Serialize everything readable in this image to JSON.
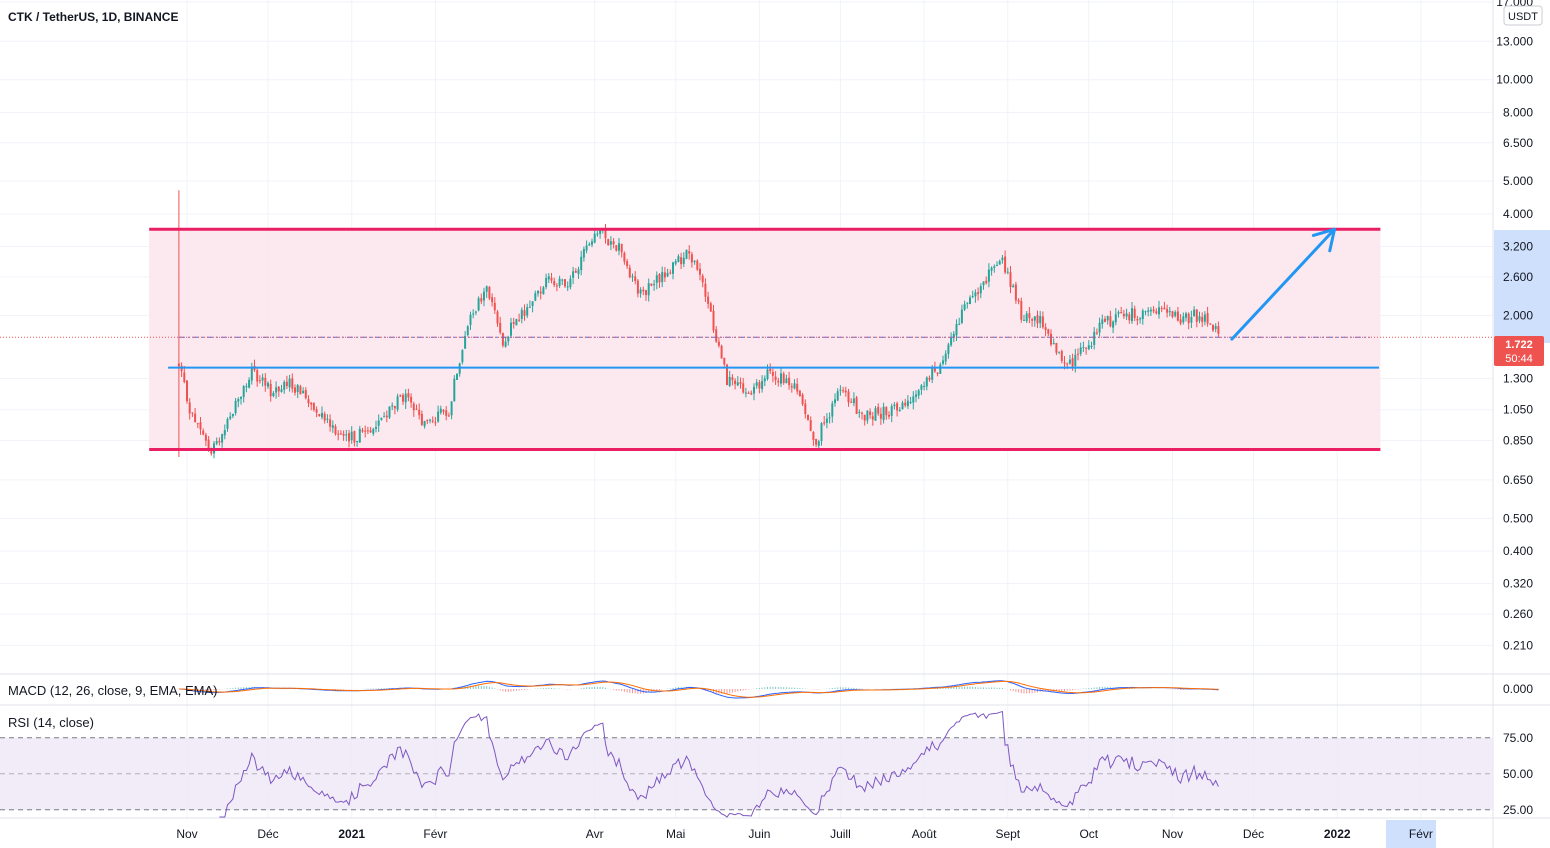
{
  "header": {
    "title": "CTK / TetherUS, 1D, BINANCE"
  },
  "price_axis": {
    "currency_badge": "USDT",
    "ticks": [
      "17.000",
      "13.000",
      "10.000",
      "8.000",
      "6.500",
      "5.000",
      "4.000",
      "3.200",
      "2.600",
      "2.000",
      "1.300",
      "1.050",
      "0.850",
      "0.650",
      "0.500",
      "0.400",
      "0.320",
      "0.260",
      "0.210"
    ],
    "last_price": "1.722",
    "countdown": "50:44"
  },
  "time_axis": {
    "labels": [
      "Nov",
      "Déc",
      "2021",
      "Févr",
      "Avr",
      "Mai",
      "Juin",
      "Juill",
      "Août",
      "Sept",
      "Oct",
      "Nov",
      "Déc",
      "2022",
      "Févr"
    ]
  },
  "macd": {
    "title": "MACD (12, 26, close, 9, EMA, EMA)",
    "axis_tick": "0.000"
  },
  "rsi": {
    "title": "RSI (14, close)",
    "axis_ticks": [
      "75.00",
      "50.00",
      "25.00"
    ]
  },
  "colors": {
    "up": "#26a69a",
    "down": "#ef5350",
    "range_line": "#e91e63",
    "range_fill": "#fce4ec",
    "support": "#2196f3",
    "arrow": "#2196f3",
    "rsi_line": "#7e57c2",
    "rsi_band": "#ede7f6",
    "macd_line": "#2962ff",
    "signal_line": "#ff6d00"
  },
  "chart_data": {
    "type": "candlestick",
    "title": "CTK / TetherUS, 1D, BINANCE",
    "y_scale": "log",
    "ylim": [
      0.19,
      17.0
    ],
    "x_range": [
      "2020-10-28",
      "2022-02-28"
    ],
    "anchors": [
      {
        "date": "2020-10-29",
        "close": 1.4
      },
      {
        "date": "2020-11-03",
        "close": 1.0
      },
      {
        "date": "2020-11-10",
        "close": 0.78
      },
      {
        "date": "2020-11-18",
        "close": 1.05
      },
      {
        "date": "2020-11-25",
        "close": 1.35
      },
      {
        "date": "2020-12-02",
        "close": 1.2
      },
      {
        "date": "2020-12-10",
        "close": 1.25
      },
      {
        "date": "2020-12-20",
        "close": 1.05
      },
      {
        "date": "2020-12-30",
        "close": 0.85
      },
      {
        "date": "2021-01-10",
        "close": 0.95
      },
      {
        "date": "2021-01-20",
        "close": 1.15
      },
      {
        "date": "2021-01-28",
        "close": 0.95
      },
      {
        "date": "2021-02-06",
        "close": 1.05
      },
      {
        "date": "2021-02-12",
        "close": 1.8
      },
      {
        "date": "2021-02-20",
        "close": 2.4
      },
      {
        "date": "2021-02-26",
        "close": 1.7
      },
      {
        "date": "2021-03-06",
        "close": 2.05
      },
      {
        "date": "2021-03-15",
        "close": 2.6
      },
      {
        "date": "2021-03-22",
        "close": 2.4
      },
      {
        "date": "2021-04-01",
        "close": 3.6
      },
      {
        "date": "2021-04-10",
        "close": 3.2
      },
      {
        "date": "2021-04-18",
        "close": 2.3
      },
      {
        "date": "2021-04-28",
        "close": 2.7
      },
      {
        "date": "2021-05-06",
        "close": 3.1
      },
      {
        "date": "2021-05-12",
        "close": 2.3
      },
      {
        "date": "2021-05-20",
        "close": 1.3
      },
      {
        "date": "2021-05-28",
        "close": 1.15
      },
      {
        "date": "2021-06-05",
        "close": 1.35
      },
      {
        "date": "2021-06-15",
        "close": 1.2
      },
      {
        "date": "2021-06-22",
        "close": 0.85
      },
      {
        "date": "2021-07-01",
        "close": 1.2
      },
      {
        "date": "2021-07-10",
        "close": 1.0
      },
      {
        "date": "2021-07-20",
        "close": 1.05
      },
      {
        "date": "2021-07-28",
        "close": 1.15
      },
      {
        "date": "2021-08-06",
        "close": 1.4
      },
      {
        "date": "2021-08-15",
        "close": 2.0
      },
      {
        "date": "2021-08-22",
        "close": 2.5
      },
      {
        "date": "2021-08-30",
        "close": 2.9
      },
      {
        "date": "2021-09-06",
        "close": 2.0
      },
      {
        "date": "2021-09-14",
        "close": 1.9
      },
      {
        "date": "2021-09-22",
        "close": 1.4
      },
      {
        "date": "2021-09-30",
        "close": 1.6
      },
      {
        "date": "2021-10-06",
        "close": 1.9
      },
      {
        "date": "2021-10-14",
        "close": 2.0
      },
      {
        "date": "2021-10-25",
        "close": 2.05
      },
      {
        "date": "2021-11-04",
        "close": 1.95
      },
      {
        "date": "2021-11-10",
        "close": 2.0
      },
      {
        "date": "2021-11-15",
        "close": 1.95
      },
      {
        "date": "2021-11-18",
        "close": 1.72
      }
    ],
    "last_close": 1.722,
    "annotations": {
      "range_resistance": 3.6,
      "range_support": 0.8,
      "range_start": "2020-10-18",
      "range_end": "2022-01-17",
      "breakout_level": 1.4,
      "breakout_start": "2020-10-25",
      "last_price_level": 1.722,
      "arrow_from": {
        "date": "2021-11-23",
        "price": 1.7
      },
      "arrow_to": {
        "date": "2021-12-31",
        "price": 3.6
      },
      "initial_spike_high": 4.7
    },
    "macd": {
      "zero": 0.0,
      "fast": 12,
      "slow": 26,
      "signal": 9
    },
    "rsi": {
      "length": 14,
      "upper": 75,
      "middle": 50,
      "lower": 25,
      "range": [
        20,
        95
      ]
    }
  }
}
